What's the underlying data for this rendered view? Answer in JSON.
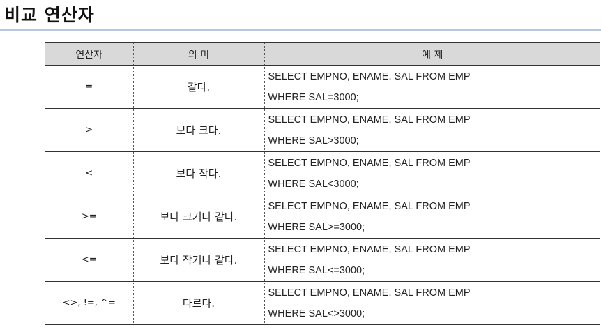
{
  "page": {
    "title": "비교 연산자"
  },
  "table": {
    "headers": {
      "operator": "연산자",
      "meaning": "의 미",
      "example": "예 제"
    },
    "rows": [
      {
        "operator": "=",
        "meaning": "같다.",
        "example_line1": "SELECT EMPNO, ENAME, SAL FROM EMP",
        "example_line2": "WHERE SAL=3000;"
      },
      {
        "operator": ">",
        "meaning": "보다 크다.",
        "example_line1": "SELECT EMPNO, ENAME, SAL FROM EMP",
        "example_line2": "WHERE SAL>3000;"
      },
      {
        "operator": "<",
        "meaning": "보다 작다.",
        "example_line1": "SELECT EMPNO, ENAME, SAL FROM EMP",
        "example_line2": "WHERE SAL<3000;"
      },
      {
        "operator": ">=",
        "meaning": "보다 크거나 같다.",
        "example_line1": "SELECT EMPNO, ENAME, SAL FROM EMP",
        "example_line2": "WHERE SAL>=3000;"
      },
      {
        "operator": "<=",
        "meaning": "보다 작거나 같다.",
        "example_line1": "SELECT EMPNO, ENAME, SAL FROM EMP",
        "example_line2": "WHERE SAL<=3000;"
      },
      {
        "operator": "<>, !=, ^=",
        "meaning": "다르다.",
        "example_line1": "SELECT EMPNO, ENAME, SAL FROM EMP",
        "example_line2": "WHERE SAL<>3000;"
      }
    ]
  }
}
